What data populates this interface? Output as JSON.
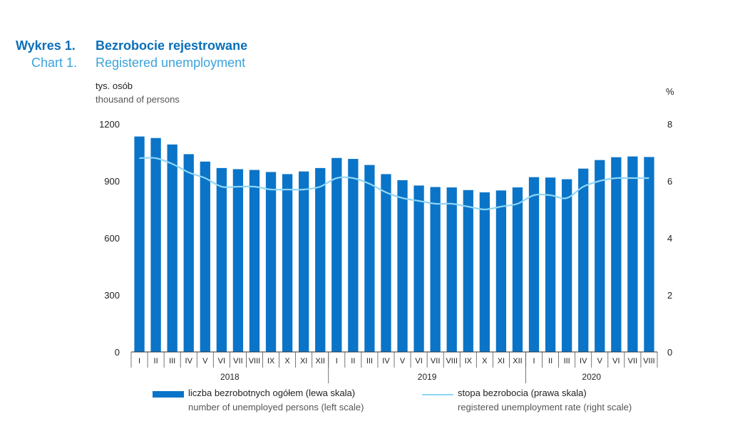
{
  "header": {
    "label_pl": "Wykres 1.",
    "title_pl": "Bezrobocie rejestrowane",
    "label_en": "Chart 1.",
    "title_en": "Registered unemployment"
  },
  "left_axis": {
    "unit_pl": "tys. osób",
    "unit_en": "thousand of persons"
  },
  "right_axis": {
    "unit": "%"
  },
  "legend": {
    "bars_pl": "liczba bezrobotnych ogółem (lewa skala)",
    "bars_en": "number of unemployed persons (left scale)",
    "line_pl": "stopa bezrobocia (prawa skala)",
    "line_en": "registered unemployment rate (right scale)"
  },
  "colors": {
    "bars": "#0a74c8",
    "line": "#8fd6f6",
    "title_pl": "#0a6fba",
    "title_en": "#3aa3dc"
  },
  "chart_data": {
    "type": "bar",
    "categories": [
      "I",
      "II",
      "III",
      "IV",
      "V",
      "VI",
      "VII",
      "VIII",
      "IX",
      "X",
      "XI",
      "XII",
      "I",
      "II",
      "III",
      "IV",
      "V",
      "VI",
      "VII",
      "VIII",
      "IX",
      "X",
      "XI",
      "XII",
      "I",
      "II",
      "III",
      "IV",
      "V",
      "VI",
      "VII",
      "VIII"
    ],
    "years": [
      {
        "label": "2018",
        "start": 0,
        "count": 12
      },
      {
        "label": "2019",
        "start": 12,
        "count": 12
      },
      {
        "label": "2020",
        "start": 24,
        "count": 8
      }
    ],
    "series": [
      {
        "name": "liczba bezrobotnych ogółem (lewa skala)",
        "type": "bar",
        "axis": "left",
        "values": [
          1134,
          1126,
          1092,
          1041,
          1002,
          968,
          962,
          958,
          947,
          936,
          950,
          968,
          1021,
          1016,
          984,
          936,
          904,
          876,
          868,
          866,
          852,
          840,
          850,
          866,
          920,
          918,
          909,
          965,
          1010,
          1025,
          1029,
          1026
        ]
      },
      {
        "name": "stopa bezrobocia (prawa skala)",
        "type": "line",
        "axis": "right",
        "values": [
          6.8,
          6.8,
          6.6,
          6.3,
          6.1,
          5.8,
          5.8,
          5.8,
          5.7,
          5.7,
          5.7,
          5.8,
          6.1,
          6.1,
          5.9,
          5.6,
          5.4,
          5.3,
          5.2,
          5.2,
          5.1,
          5.0,
          5.1,
          5.2,
          5.5,
          5.5,
          5.4,
          5.8,
          6.0,
          6.1,
          6.1,
          6.1
        ]
      }
    ],
    "left_ylim": [
      0,
      1200
    ],
    "left_ticks": [
      0,
      300,
      600,
      900,
      1200
    ],
    "right_ylim": [
      0,
      8
    ],
    "right_ticks": [
      0,
      2,
      4,
      6,
      8
    ],
    "title": "Bezrobocie rejestrowane",
    "xlabel": "",
    "ylabel": "tys. osób",
    "y2label": "%"
  }
}
